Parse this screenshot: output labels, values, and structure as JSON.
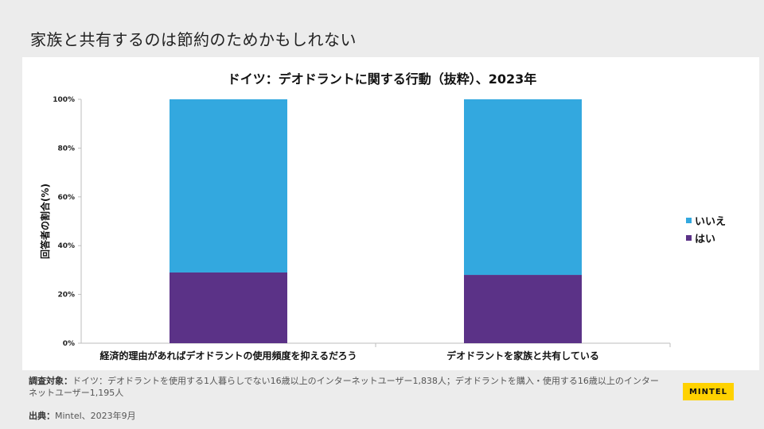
{
  "slide": {
    "title": "家族と共有するのは節約のためかもしれない"
  },
  "chart_data": {
    "type": "bar",
    "stacked": true,
    "title": "ドイツ：デオドラントに関する行動（抜粋）、2023年",
    "ylabel": "回答者の割合(%)",
    "xlabel": "",
    "ylim": [
      0,
      100
    ],
    "yticks": [
      0,
      20,
      40,
      60,
      80,
      100
    ],
    "ytick_labels": [
      "0%",
      "20%",
      "40%",
      "60%",
      "80%",
      "100%"
    ],
    "categories": [
      "経済的理由があればデオドラントの使用頻度を抑えるだろう",
      "デオドラントを家族と共有している"
    ],
    "series": [
      {
        "name": "はい",
        "values": [
          29,
          28
        ],
        "color": "#5b3287"
      },
      {
        "name": "いいえ",
        "values": [
          71,
          72
        ],
        "color": "#33a8df"
      }
    ],
    "legend_order": [
      "いいえ",
      "はい"
    ],
    "legend_position": "right"
  },
  "footnote": {
    "label": "調査対象：",
    "text": "ドイツ：デオドラントを使用する1人暮らしでない16歳以上のインターネットユーザー1,838人；デオドラントを購入・使用する16歳以上のインターネットユーザー1,195人"
  },
  "source": {
    "label": "出典：",
    "text": "Mintel、2023年9月"
  },
  "brand": {
    "logo_text": "MINTEL",
    "accent": "#ffd200"
  }
}
